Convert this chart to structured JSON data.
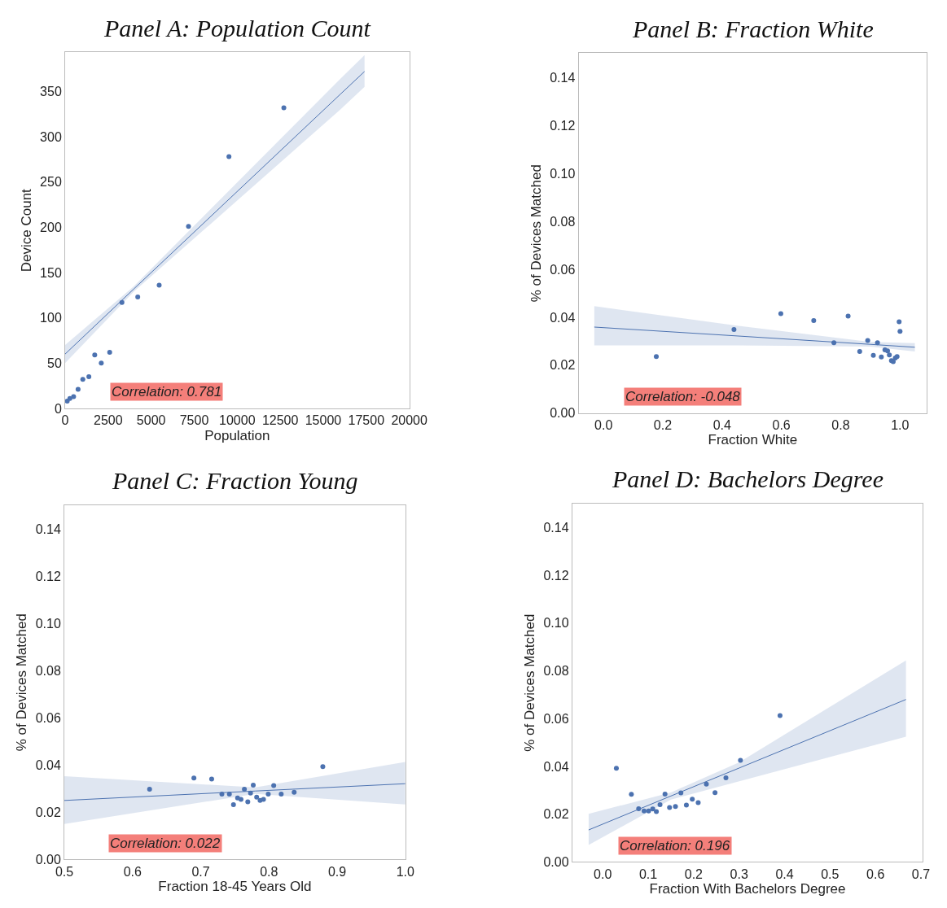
{
  "chart_data": [
    {
      "type": "scatter",
      "title": "Panel A: Population Count",
      "xlabel": "Population",
      "ylabel": "Device Count",
      "xlim": [
        0,
        20000
      ],
      "ylim": [
        0,
        393
      ],
      "xticks": [
        0,
        2500,
        5000,
        7500,
        10000,
        12500,
        15000,
        17500,
        20000
      ],
      "yticks": [
        0,
        50,
        100,
        150,
        200,
        250,
        300,
        350
      ],
      "annotations": [
        "Correlation: 0.781"
      ],
      "series": [
        {
          "color": "#4c72b0",
          "marker": "circle",
          "x": [
            123,
            276,
            491,
            752,
            1028,
            1380,
            1720,
            2100,
            2590,
            3300,
            4220,
            5465,
            7170,
            9520,
            12710
          ],
          "values": [
            8,
            11,
            13,
            21,
            32,
            35,
            59,
            50,
            62,
            117,
            123,
            136,
            201,
            278,
            332
          ]
        },
        {
          "type": "line",
          "marker": "none",
          "color": "#4c72b0",
          "x": [
            0,
            4000,
            16000,
            17400
          ],
          "values": [
            60,
            132,
            347,
            372
          ],
          "lower": [
            50,
            129,
            330,
            355
          ],
          "upper": [
            70,
            135,
            364,
            390
          ]
        }
      ]
    },
    {
      "type": "scatter",
      "title": "Panel B: Fraction White",
      "xlabel": "Fraction White",
      "ylabel": "% of Devices Matched",
      "xlim": [
        -0.084,
        1.09
      ],
      "ylim": [
        0,
        0.15
      ],
      "xticks": [
        {
          "value": 0,
          "label": "0.0"
        },
        {
          "value": 0.2,
          "label": "0.2"
        },
        {
          "value": 0.4,
          "label": "0.4"
        },
        {
          "value": 0.6,
          "label": "0.6"
        },
        {
          "value": 0.8,
          "label": "0.8"
        },
        {
          "value": 1,
          "label": "1.0"
        }
      ],
      "yticks": [
        {
          "value": 0,
          "label": "0.00"
        },
        {
          "value": 0.02,
          "label": "0.02"
        },
        {
          "value": 0.04,
          "label": "0.04"
        },
        {
          "value": 0.06,
          "label": "0.06"
        },
        {
          "value": 0.08,
          "label": "0.08"
        },
        {
          "value": 0.1,
          "label": "0.10"
        },
        {
          "value": 0.12,
          "label": "0.12"
        },
        {
          "value": 0.14,
          "label": "0.14"
        }
      ],
      "annotations": [
        "Correlation: -0.048"
      ],
      "series": [
        {
          "color": "#4c72b0",
          "marker": "circle",
          "x": [
            0.178,
            0.44,
            0.598,
            0.709,
            0.777,
            0.825,
            0.864,
            0.891,
            0.91,
            0.924,
            0.937,
            0.949,
            0.958,
            0.964,
            0.971,
            0.977,
            0.984,
            0.99,
            0.997,
            1.0
          ],
          "values": [
            0.0236,
            0.0349,
            0.0415,
            0.0386,
            0.0294,
            0.0405,
            0.0257,
            0.0303,
            0.0241,
            0.0294,
            0.0234,
            0.0264,
            0.026,
            0.0243,
            0.0219,
            0.0215,
            0.023,
            0.0236,
            0.0381,
            0.0341
          ]
        },
        {
          "type": "line",
          "marker": "none",
          "color": "#4c72b0",
          "x": [
            -0.031,
            0.45,
            0.9,
            1.05
          ],
          "values": [
            0.0359,
            0.0322,
            0.0287,
            0.0275
          ],
          "lower": [
            0.0283,
            0.0283,
            0.0278,
            0.0257
          ],
          "upper": [
            0.0446,
            0.0365,
            0.0297,
            0.0292
          ]
        }
      ]
    },
    {
      "type": "scatter",
      "title": "Panel C: Fraction Young",
      "xlabel": "Fraction 18-45 Years Old",
      "ylabel": "% of Devices Matched",
      "xlim": [
        0.5,
        1.0
      ],
      "ylim": [
        0,
        0.15
      ],
      "xticks": [
        {
          "value": 0.5,
          "label": "0.5"
        },
        {
          "value": 0.6,
          "label": "0.6"
        },
        {
          "value": 0.7,
          "label": "0.7"
        },
        {
          "value": 0.8,
          "label": "0.8"
        },
        {
          "value": 0.9,
          "label": "0.9"
        },
        {
          "value": 1,
          "label": "1.0"
        }
      ],
      "yticks": [
        {
          "value": 0,
          "label": "0.00"
        },
        {
          "value": 0.02,
          "label": "0.02"
        },
        {
          "value": 0.04,
          "label": "0.04"
        },
        {
          "value": 0.06,
          "label": "0.06"
        },
        {
          "value": 0.08,
          "label": "0.08"
        },
        {
          "value": 0.1,
          "label": "0.10"
        },
        {
          "value": 0.12,
          "label": "0.12"
        },
        {
          "value": 0.14,
          "label": "0.14"
        }
      ],
      "annotations": [
        "Correlation: 0.022"
      ],
      "series": [
        {
          "color": "#4c72b0",
          "marker": "circle",
          "x": [
            0.625,
            0.69,
            0.716,
            0.731,
            0.742,
            0.748,
            0.754,
            0.759,
            0.764,
            0.769,
            0.773,
            0.777,
            0.782,
            0.787,
            0.792,
            0.799,
            0.807,
            0.818,
            0.837,
            0.879
          ],
          "values": [
            0.0298,
            0.0345,
            0.0341,
            0.0277,
            0.0277,
            0.0232,
            0.0261,
            0.0255,
            0.0298,
            0.0244,
            0.0281,
            0.0315,
            0.0264,
            0.025,
            0.0255,
            0.0277,
            0.0313,
            0.0277,
            0.0285,
            0.0393
          ]
        },
        {
          "type": "line",
          "marker": "none",
          "color": "#4c72b0",
          "x": [
            0.5,
            0.78,
            1.0
          ],
          "values": [
            0.025,
            0.029,
            0.0321
          ],
          "lower": [
            0.015,
            0.0278,
            0.0233
          ],
          "upper": [
            0.0353,
            0.0305,
            0.0413
          ]
        }
      ]
    },
    {
      "type": "scatter",
      "title": "Panel D: Bachelors Degree",
      "xlabel": "Fraction With Bachelors Degree",
      "ylabel": "% of Devices Matched",
      "xlim": [
        -0.067,
        0.704
      ],
      "ylim": [
        0,
        0.15
      ],
      "xticks": [
        {
          "value": 0,
          "label": "0.0"
        },
        {
          "value": 0.1,
          "label": "0.1"
        },
        {
          "value": 0.2,
          "label": "0.2"
        },
        {
          "value": 0.3,
          "label": "0.3"
        },
        {
          "value": 0.4,
          "label": "0.4"
        },
        {
          "value": 0.5,
          "label": "0.5"
        },
        {
          "value": 0.6,
          "label": "0.6"
        },
        {
          "value": 0.7,
          "label": "0.7"
        }
      ],
      "yticks": [
        {
          "value": 0,
          "label": "0.00"
        },
        {
          "value": 0.02,
          "label": "0.02"
        },
        {
          "value": 0.04,
          "label": "0.04"
        },
        {
          "value": 0.06,
          "label": "0.06"
        },
        {
          "value": 0.08,
          "label": "0.08"
        },
        {
          "value": 0.1,
          "label": "0.10"
        },
        {
          "value": 0.12,
          "label": "0.12"
        },
        {
          "value": 0.14,
          "label": "0.14"
        }
      ],
      "annotations": [
        "Correlation: 0.196"
      ],
      "series": [
        {
          "color": "#4c72b0",
          "marker": "circle",
          "x": [
            0.03,
            0.063,
            0.079,
            0.091,
            0.101,
            0.11,
            0.118,
            0.126,
            0.137,
            0.147,
            0.16,
            0.172,
            0.184,
            0.197,
            0.21,
            0.228,
            0.247,
            0.271,
            0.303,
            0.39
          ],
          "values": [
            0.0392,
            0.0283,
            0.0223,
            0.0213,
            0.0213,
            0.0222,
            0.0211,
            0.024,
            0.0284,
            0.0228,
            0.0232,
            0.0289,
            0.0238,
            0.0263,
            0.0248,
            0.0326,
            0.029,
            0.0352,
            0.0425,
            0.0613
          ]
        },
        {
          "type": "line",
          "marker": "none",
          "color": "#4c72b0",
          "x": [
            -0.031,
            0.15,
            0.3,
            0.667
          ],
          "values": [
            0.0134,
            0.0276,
            0.0393,
            0.068
          ],
          "lower": [
            0.0071,
            0.0261,
            0.0338,
            0.0524
          ],
          "upper": [
            0.0201,
            0.0291,
            0.0417,
            0.0843
          ]
        }
      ]
    }
  ]
}
